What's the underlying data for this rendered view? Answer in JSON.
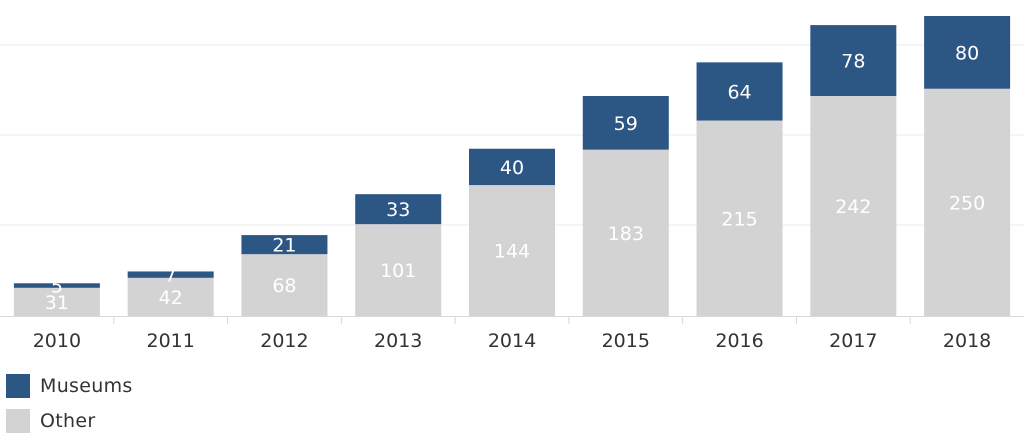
{
  "chart_data": {
    "type": "bar",
    "stacked": true,
    "categories": [
      "2010",
      "2011",
      "2012",
      "2013",
      "2014",
      "2015",
      "2016",
      "2017",
      "2018"
    ],
    "series": [
      {
        "name": "Other",
        "values": [
          31,
          42,
          68,
          101,
          144,
          183,
          215,
          242,
          250
        ],
        "color": "#d3d3d3",
        "label_color": "#ffffff"
      },
      {
        "name": "Museums",
        "values": [
          5,
          7,
          21,
          33,
          40,
          59,
          64,
          78,
          80
        ],
        "color": "#2c5684",
        "label_color": "#ffffff"
      }
    ],
    "ylim": [
      0,
      330
    ],
    "grid": true,
    "legend_position": "bottom-left",
    "title": "",
    "xlabel": "",
    "ylabel": ""
  },
  "legend": {
    "items": [
      {
        "label": "Museums",
        "color": "#2c5684"
      },
      {
        "label": "Other",
        "color": "#d3d3d3"
      }
    ]
  }
}
